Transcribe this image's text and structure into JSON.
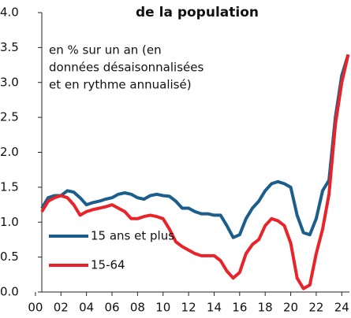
{
  "chart_data": {
    "type": "line",
    "title": "de la population",
    "annotation": [
      "en % sur un an (en",
      "données désaisonnalisées",
      "et en rythme annualisé)"
    ],
    "x": [
      2000.5,
      2001,
      2001.5,
      2002,
      2002.5,
      2003,
      2003.5,
      2004,
      2004.5,
      2005,
      2005.5,
      2006,
      2006.5,
      2007,
      2007.5,
      2008,
      2008.5,
      2009,
      2009.5,
      2010,
      2010.5,
      2011,
      2011.5,
      2012,
      2012.5,
      2013,
      2013.5,
      2014,
      2014.5,
      2015,
      2015.5,
      2016,
      2016.5,
      2017,
      2017.5,
      2018,
      2018.5,
      2019,
      2019.5,
      2020,
      2020.5,
      2021,
      2021.5,
      2022,
      2022.5,
      2023,
      2023.5,
      2024,
      2024.5
    ],
    "series": [
      {
        "name": "15 ans et plus",
        "color": "#1b5e8c",
        "values": [
          1.2,
          1.35,
          1.38,
          1.38,
          1.45,
          1.43,
          1.35,
          1.25,
          1.28,
          1.3,
          1.33,
          1.35,
          1.4,
          1.42,
          1.4,
          1.35,
          1.33,
          1.38,
          1.4,
          1.38,
          1.37,
          1.3,
          1.2,
          1.2,
          1.15,
          1.12,
          1.12,
          1.1,
          1.1,
          0.95,
          0.78,
          0.82,
          1.05,
          1.2,
          1.3,
          1.45,
          1.55,
          1.58,
          1.55,
          1.5,
          1.1,
          0.85,
          0.82,
          1.05,
          1.45,
          1.6,
          2.5,
          3.1,
          3.4
        ]
      },
      {
        "name": "15-64",
        "color": "#e8242a",
        "values": [
          1.15,
          1.3,
          1.35,
          1.38,
          1.35,
          1.25,
          1.1,
          1.15,
          1.18,
          1.2,
          1.22,
          1.25,
          1.2,
          1.15,
          1.05,
          1.05,
          1.08,
          1.1,
          1.08,
          1.05,
          0.9,
          0.72,
          0.65,
          0.6,
          0.55,
          0.52,
          0.52,
          0.52,
          0.45,
          0.3,
          0.2,
          0.28,
          0.55,
          0.68,
          0.75,
          0.95,
          1.05,
          1.02,
          0.95,
          0.7,
          0.2,
          0.05,
          0.1,
          0.55,
          0.9,
          1.4,
          2.4,
          3.0,
          3.4
        ]
      }
    ],
    "xlim": [
      2000.5,
      2024.6
    ],
    "xticks": [
      {
        "value": 2000,
        "label": "00"
      },
      {
        "value": 2002,
        "label": "02"
      },
      {
        "value": 2004,
        "label": "04"
      },
      {
        "value": 2006,
        "label": "06"
      },
      {
        "value": 2008,
        "label": "08"
      },
      {
        "value": 2010,
        "label": "10"
      },
      {
        "value": 2012,
        "label": "12"
      },
      {
        "value": 2014,
        "label": "14"
      },
      {
        "value": 2016,
        "label": "16"
      },
      {
        "value": 2018,
        "label": "18"
      },
      {
        "value": 2020,
        "label": "20"
      },
      {
        "value": 2022,
        "label": "22"
      },
      {
        "value": 2024,
        "label": "24"
      }
    ],
    "ylim": [
      0,
      4
    ],
    "yticks": [
      {
        "value": 0,
        "label": "0.0"
      },
      0.5,
      {
        "value": 1,
        "label": "1.0"
      },
      1.5,
      {
        "value": 2,
        "label": "2.0"
      },
      2.5,
      {
        "value": 3,
        "label": "3.0"
      },
      3.5,
      {
        "value": 4,
        "label": "4.0"
      }
    ],
    "legend": "lower left"
  }
}
